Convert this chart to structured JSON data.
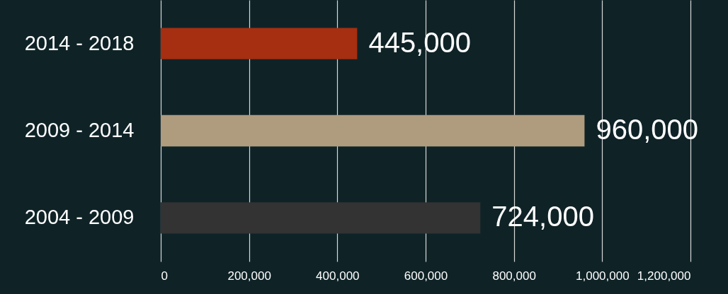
{
  "chart_data": {
    "type": "bar",
    "orientation": "horizontal",
    "categories": [
      "2014 - 2018",
      "2009 - 2014",
      "2004 - 2009"
    ],
    "values": [
      445000,
      960000,
      724000
    ],
    "colors": [
      "#a52f10",
      "#af9b7e",
      "#333333"
    ],
    "value_labels": [
      "445,000",
      "960,000",
      "724,000"
    ],
    "xlim": [
      0,
      1200000
    ],
    "xticks": [
      {
        "value": 0,
        "label": "0"
      },
      {
        "value": 200000,
        "label": "200,000"
      },
      {
        "value": 400000,
        "label": "400,000"
      },
      {
        "value": 600000,
        "label": "600,000"
      },
      {
        "value": 800000,
        "label": "800,000"
      },
      {
        "value": 1000000,
        "label": "1,000,000"
      },
      {
        "value": 1200000,
        "label": "1,200,000"
      }
    ],
    "grid": "x"
  }
}
